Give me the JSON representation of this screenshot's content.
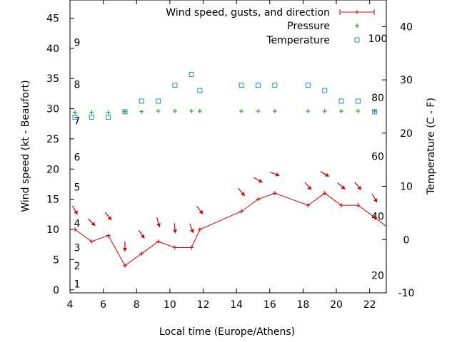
{
  "chart_data": {
    "type": "line",
    "xlabel": "Local time (Europe/Athens)",
    "ylabel": "Wind speed (kt - Beaufort)",
    "y2label": "Temperature (C - F)",
    "xlim": [
      4,
      23
    ],
    "ylim": [
      -0.5,
      48
    ],
    "y2lim": [
      -10,
      45
    ],
    "x_ticks": [
      4,
      6,
      8,
      10,
      12,
      14,
      16,
      18,
      20,
      22
    ],
    "y_ticks": [
      0,
      5,
      10,
      15,
      20,
      25,
      30,
      35,
      40,
      45
    ],
    "y2_ticks": [
      -10,
      0,
      10,
      20,
      30,
      40
    ],
    "beaufort_labels": [
      {
        "label": "1",
        "at": 1
      },
      {
        "label": "2",
        "at": 4
      },
      {
        "label": "3",
        "at": 7
      },
      {
        "label": "4",
        "at": 11
      },
      {
        "label": "5",
        "at": 17
      },
      {
        "label": "6",
        "at": 22
      },
      {
        "label": "7",
        "at": 28
      },
      {
        "label": "8",
        "at": 34
      },
      {
        "label": "9",
        "at": 41
      }
    ],
    "fahrenheit_labels": [
      {
        "label": "20",
        "at": -6.7
      },
      {
        "label": "40",
        "at": 4.4
      },
      {
        "label": "60",
        "at": 15.6
      },
      {
        "label": "80",
        "at": 26.7
      },
      {
        "label": "100",
        "at": 37.8
      }
    ],
    "legend": {
      "placement": "top-right",
      "entries": [
        "Wind speed, gusts, and direction",
        "Pressure",
        "Temperature"
      ]
    },
    "series": [
      {
        "name": "Wind speed, gusts, and direction",
        "x": [
          4.3,
          5.3,
          6.3,
          7.3,
          8.3,
          9.3,
          10.3,
          11.3,
          11.8,
          14.3,
          15.3,
          16.3,
          18.3,
          19.3,
          20.3,
          21.3,
          22.3,
          23.0
        ],
        "values": [
          10,
          8,
          9,
          4,
          6,
          8,
          7,
          7,
          10,
          13,
          15,
          16,
          14,
          16,
          14,
          14,
          12,
          10.5
        ],
        "direction_deg": [
          330,
          315,
          320,
          0,
          325,
          345,
          355,
          340,
          320,
          320,
          300,
          290,
          320,
          300,
          310,
          320,
          330
        ]
      },
      {
        "name": "Pressure",
        "x": [
          4.3,
          5.3,
          6.3,
          7.3,
          8.3,
          9.3,
          10.3,
          11.3,
          11.8,
          14.3,
          15.3,
          16.3,
          18.3,
          19.3,
          20.3,
          21.3,
          22.3
        ],
        "values": [
          29.4,
          29.4,
          29.4,
          29.5,
          29.5,
          29.6,
          29.6,
          29.6,
          29.6,
          29.6,
          29.6,
          29.6,
          29.6,
          29.6,
          29.6,
          29.6,
          29.6
        ]
      },
      {
        "name": "Temperature",
        "x": [
          4.3,
          5.3,
          6.3,
          7.3,
          8.3,
          9.3,
          10.3,
          11.3,
          11.8,
          14.3,
          15.3,
          16.3,
          18.3,
          19.3,
          20.3,
          21.3,
          22.3
        ],
        "values": [
          23,
          23,
          23,
          24,
          26,
          26,
          29,
          31,
          28,
          29,
          29,
          29,
          29,
          28,
          26,
          26,
          24
        ]
      }
    ]
  }
}
